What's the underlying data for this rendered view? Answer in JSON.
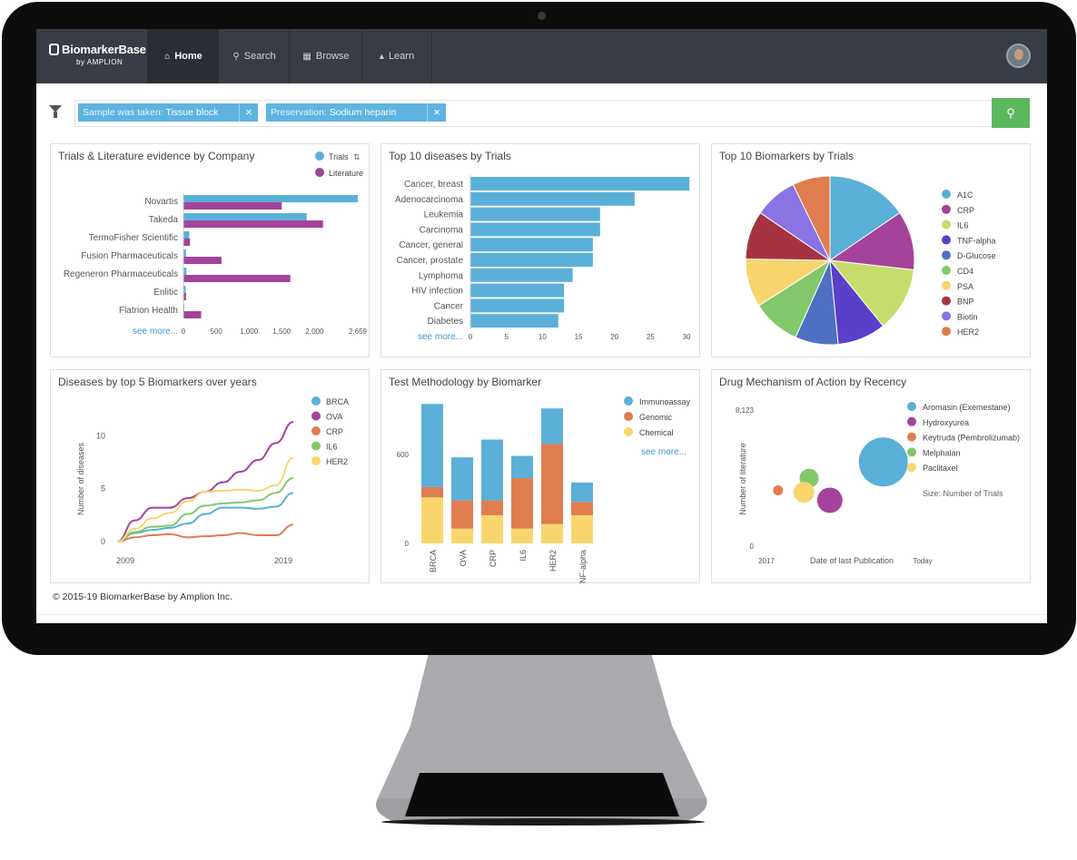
{
  "app": {
    "name": "BiomarkerBase",
    "by": "by AMPLION"
  },
  "nav": [
    {
      "label": "Home",
      "icon": "home-icon",
      "active": true
    },
    {
      "label": "Search",
      "icon": "search-icon",
      "active": false
    },
    {
      "label": "Browse",
      "icon": "map-icon",
      "active": false
    },
    {
      "label": "Learn",
      "icon": "graduation-cap-icon",
      "active": false
    }
  ],
  "filters": [
    {
      "key": "Sample was taken:",
      "value": "Tissue block"
    },
    {
      "key": "Preservation:",
      "value": "Sodium heparin"
    }
  ],
  "colors": {
    "nav_bg": "#383c44",
    "chip": "#5fb3e0",
    "search_btn": "#5cb85c",
    "trials": "#5ab0d8",
    "literature": "#a3449a",
    "orange": "#e07d4f",
    "green": "#82c86b",
    "yellow": "#f8d66d"
  },
  "panels": {
    "company": {
      "title": "Trials & Literature evidence by Company",
      "see_more": "see more..."
    },
    "diseases": {
      "title": "Top 10 diseases by Trials",
      "see_more": "see more..."
    },
    "biomarkers": {
      "title": "Top 10 Biomarkers by Trials"
    },
    "years": {
      "title": "Diseases by top 5 Biomarkers over years"
    },
    "methodology": {
      "title": "Test Methodology by Biomarker",
      "see_more": "see more..."
    },
    "mechanism": {
      "title": "Drug Mechanism of Action by Recency",
      "size_note": "Size: Number of Trials"
    }
  },
  "footer": "© 2015-19 BiomarkerBase by Amplion Inc.",
  "chart_data": [
    {
      "type": "bar",
      "orientation": "horizontal",
      "title": "Trials & Literature evidence by Company",
      "categories": [
        "Novartis",
        "Takeda",
        "TermoFisher Scientific",
        "Fusion Pharmaceuticals",
        "Regeneron Pharmaceuticals",
        "Enlitic",
        "Flatrion Health"
      ],
      "series": [
        {
          "name": "Trials",
          "color": "#5ab0d8",
          "values": [
            2659,
            1880,
            90,
            40,
            45,
            35,
            10
          ]
        },
        {
          "name": "Literature",
          "color": "#a3449a",
          "values": [
            1500,
            2130,
            100,
            580,
            1630,
            40,
            270
          ]
        }
      ],
      "ticks": [
        "0",
        "500",
        "1,000",
        "1,500",
        "2,000",
        "2,659"
      ],
      "xlim": [
        0,
        2659
      ],
      "legend": "top-right"
    },
    {
      "type": "bar",
      "orientation": "horizontal",
      "title": "Top 10 diseases by Trials",
      "categories": [
        "Cancer, breast",
        "Adenocarcinoma",
        "Leukemia",
        "Carcinoma",
        "Cancer, general",
        "Cancer, prostate",
        "Lymphoma",
        "HIV infection",
        "Cancer",
        "Diabetes"
      ],
      "values": [
        30.4,
        22.8,
        18,
        18,
        17,
        17,
        14.2,
        13,
        13,
        12.2
      ],
      "ticks": [
        "0",
        "5",
        "10",
        "15",
        "20",
        "25",
        "30"
      ],
      "xlim": [
        0,
        30.5
      ]
    },
    {
      "type": "pie",
      "title": "Top 10 Biomarkers by Trials",
      "labels": [
        "A1C",
        "CRP",
        "IL6",
        "TNF-alpha",
        "D-Glucose",
        "CD4",
        "PSA",
        "BNP",
        "Biotin",
        "HER2"
      ],
      "values": [
        15,
        11,
        12,
        9,
        8,
        9,
        9,
        9,
        8,
        7
      ],
      "colors": [
        "#5ab0d8",
        "#a3449a",
        "#c6dd6b",
        "#5a3fc9",
        "#4f6fc2",
        "#82c86b",
        "#f8d66d",
        "#a83340",
        "#8a73e3",
        "#e07d4f"
      ],
      "legend": "right"
    },
    {
      "type": "line",
      "title": "Diseases by top 5 Biomarkers over years",
      "ylabel": "Number of diseases",
      "x": [
        2009,
        2010,
        2011,
        2012,
        2013,
        2014,
        2015,
        2016,
        2017,
        2018,
        2019
      ],
      "xticks": [
        "2009",
        "2019"
      ],
      "yticks": [
        "0",
        "5",
        "10"
      ],
      "ylim": [
        0,
        12
      ],
      "series": [
        {
          "name": "BRCA",
          "color": "#5ab0d8",
          "values": [
            0,
            0.8,
            1.1,
            1.3,
            1.7,
            2.6,
            3.2,
            3.2,
            3.1,
            3.3,
            4.6
          ]
        },
        {
          "name": "OVA",
          "color": "#a3449a",
          "values": [
            0,
            2.0,
            3.2,
            3.2,
            4.1,
            4.7,
            5.6,
            6.6,
            7.7,
            9.3,
            11.3
          ]
        },
        {
          "name": "CRP",
          "color": "#e07d4f",
          "values": [
            0,
            0.4,
            0.6,
            0.7,
            0.4,
            0.5,
            0.6,
            0.8,
            0.6,
            0.6,
            1.6
          ]
        },
        {
          "name": "IL6",
          "color": "#82c86b",
          "values": [
            0,
            0.9,
            1.4,
            1.5,
            2.6,
            3.4,
            3.6,
            3.7,
            3.9,
            4.6,
            6.0
          ]
        },
        {
          "name": "HER2",
          "color": "#f8d66d",
          "values": [
            0,
            1.2,
            2.2,
            2.7,
            3.8,
            4.7,
            4.8,
            4.9,
            4.8,
            5.3,
            7.9
          ]
        }
      ]
    },
    {
      "type": "bar",
      "stacked": true,
      "title": "Test Methodology by Biomarker",
      "categories": [
        "BRCA",
        "OVA",
        "CRP",
        "IL6",
        "HER2",
        "TNF-alpha"
      ],
      "series": [
        {
          "name": "Chemical",
          "color": "#f8d66d",
          "values": [
            310,
            100,
            190,
            100,
            130,
            190
          ]
        },
        {
          "name": "Genomic",
          "color": "#e07d4f",
          "values": [
            70,
            190,
            100,
            340,
            540,
            90
          ]
        },
        {
          "name": "Immunoassay",
          "color": "#5ab0d8",
          "values": [
            560,
            290,
            410,
            150,
            240,
            130
          ]
        }
      ],
      "yticks": [
        "0",
        "600"
      ],
      "ylim": [
        0,
        960
      ]
    },
    {
      "type": "scatter",
      "subtype": "bubble",
      "title": "Drug Mechanism of Action by Recency",
      "xlabel": "Date of last Publication",
      "ylabel": "Number of literature",
      "xticks": [
        "2017",
        "Today"
      ],
      "yticks": [
        "0",
        "8,123"
      ],
      "xlim": [
        0,
        1
      ],
      "ylim": [
        0,
        8123
      ],
      "series": [
        {
          "name": "Aromasin (Exemestane)",
          "color": "#5ab0d8",
          "x": 0.73,
          "y": 5000,
          "size": 27
        },
        {
          "name": "Hydroxyurea",
          "color": "#a3449a",
          "x": 0.42,
          "y": 2700,
          "size": 14
        },
        {
          "name": "Keytruda (Pembrolizumab)",
          "color": "#e07d4f",
          "x": 0.12,
          "y": 3300,
          "size": 5.5
        },
        {
          "name": "Melphalan",
          "color": "#82c86b",
          "x": 0.3,
          "y": 4020,
          "size": 10.5
        },
        {
          "name": "Paclitaxel",
          "color": "#f8d66d",
          "x": 0.27,
          "y": 3180,
          "size": 11.5
        }
      ],
      "legend": "right"
    }
  ]
}
